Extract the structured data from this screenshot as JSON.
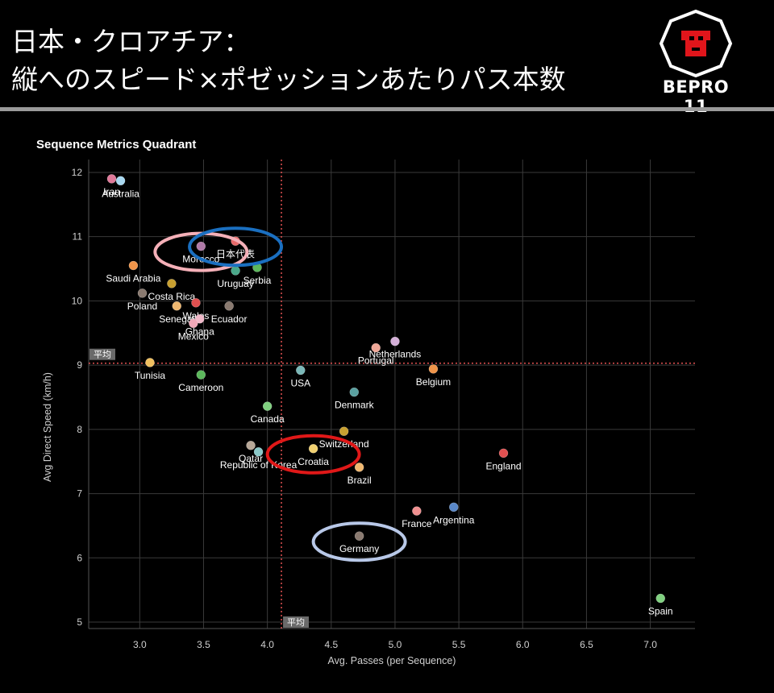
{
  "slide": {
    "title_line1": "日本・クロアチア：",
    "title_line2": "縦へのスピード×ポゼッションあたりパス本数"
  },
  "logo": {
    "text": "BEPRO 11",
    "icon": "lion-head-icon",
    "accent_color": "#e0151b"
  },
  "chart_data": {
    "type": "scatter",
    "title": "Sequence Metrics Quadrant",
    "xlabel": "Avg. Passes (per Sequence)",
    "ylabel": "Avg Direct Speed (km/h)",
    "xlim": [
      2.6,
      7.35
    ],
    "ylim": [
      4.9,
      12.2
    ],
    "xticks": [
      3.0,
      3.5,
      4.0,
      4.5,
      5.0,
      5.5,
      6.0,
      6.5,
      7.0
    ],
    "yticks": [
      5,
      6,
      7,
      8,
      9,
      10,
      11,
      12
    ],
    "grid": true,
    "average": {
      "x": 4.11,
      "y": 9.03,
      "label": "平均",
      "color": "#e05050"
    },
    "points": [
      {
        "name": "Iran",
        "x": 2.78,
        "y": 11.9,
        "color": "#e07a9a"
      },
      {
        "name": "Australia",
        "x": 2.85,
        "y": 11.87,
        "color": "#a8d8f0"
      },
      {
        "name": "Morocco",
        "x": 3.48,
        "y": 10.85,
        "color": "#b07aa8"
      },
      {
        "name": "日本代表",
        "x": 3.75,
        "y": 10.93,
        "color": "#e86a6a"
      },
      {
        "name": "Saudi Arabia",
        "x": 2.95,
        "y": 10.55,
        "color": "#f0954a"
      },
      {
        "name": "Uruguay",
        "x": 3.75,
        "y": 10.47,
        "color": "#4aa88a"
      },
      {
        "name": "Serbia",
        "x": 3.92,
        "y": 10.52,
        "color": "#5cb85c"
      },
      {
        "name": "Costa Rica",
        "x": 3.25,
        "y": 10.27,
        "color": "#c8a030"
      },
      {
        "name": "Poland",
        "x": 3.02,
        "y": 10.12,
        "color": "#8a7a70"
      },
      {
        "name": "Senegal",
        "x": 3.29,
        "y": 9.92,
        "color": "#f0b870"
      },
      {
        "name": "Wales",
        "x": 3.44,
        "y": 9.97,
        "color": "#e05050"
      },
      {
        "name": "Ecuador",
        "x": 3.7,
        "y": 9.92,
        "color": "#8a7a70"
      },
      {
        "name": "Ghana",
        "x": 3.47,
        "y": 9.72,
        "color": "#f0b8c8"
      },
      {
        "name": "Mexico",
        "x": 3.42,
        "y": 9.65,
        "color": "#f0a8b8"
      },
      {
        "name": "Netherlands",
        "x": 5.0,
        "y": 9.37,
        "color": "#d4b0d8"
      },
      {
        "name": "Portugal",
        "x": 4.85,
        "y": 9.27,
        "color": "#f0a898"
      },
      {
        "name": "Tunisia",
        "x": 3.08,
        "y": 9.04,
        "color": "#f0c060"
      },
      {
        "name": "USA",
        "x": 4.26,
        "y": 8.92,
        "color": "#7ab8b8"
      },
      {
        "name": "Belgium",
        "x": 5.3,
        "y": 8.94,
        "color": "#f0954a"
      },
      {
        "name": "Cameroon",
        "x": 3.48,
        "y": 8.85,
        "color": "#5cb85c"
      },
      {
        "name": "Denmark",
        "x": 4.68,
        "y": 8.58,
        "color": "#5aa0a0"
      },
      {
        "name": "Canada",
        "x": 4.0,
        "y": 8.36,
        "color": "#80d080"
      },
      {
        "name": "Switzerland",
        "x": 4.6,
        "y": 7.97,
        "color": "#c8a030"
      },
      {
        "name": "Qatar",
        "x": 3.87,
        "y": 7.75,
        "color": "#b8a898"
      },
      {
        "name": "Republic of Korea",
        "x": 3.93,
        "y": 7.65,
        "color": "#8ac8c8"
      },
      {
        "name": "Croatia",
        "x": 4.36,
        "y": 7.7,
        "color": "#f0d070"
      },
      {
        "name": "England",
        "x": 5.85,
        "y": 7.63,
        "color": "#e05050"
      },
      {
        "name": "Brazil",
        "x": 4.72,
        "y": 7.41,
        "color": "#f0b870"
      },
      {
        "name": "France",
        "x": 5.17,
        "y": 6.73,
        "color": "#f09090"
      },
      {
        "name": "Argentina",
        "x": 5.46,
        "y": 6.79,
        "color": "#5a88c8"
      },
      {
        "name": "Germany",
        "x": 4.72,
        "y": 6.34,
        "color": "#8a7a70"
      },
      {
        "name": "Spain",
        "x": 7.08,
        "y": 5.37,
        "color": "#80d080"
      }
    ],
    "highlights": [
      {
        "target": "Morocco",
        "color": "#f5b0b8"
      },
      {
        "target": "日本代表",
        "color": "#1a6fc0"
      },
      {
        "target": "Croatia",
        "color": "#e01818"
      },
      {
        "target": "Germany",
        "color": "#b8c8e8"
      }
    ]
  }
}
